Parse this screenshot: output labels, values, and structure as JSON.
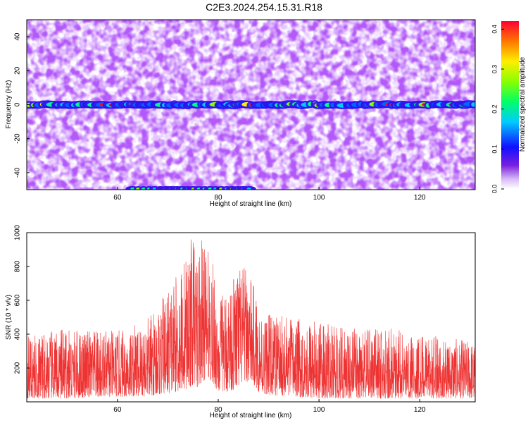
{
  "title": "C2E3.2024.254.15.31.R18",
  "chart_data": [
    {
      "type": "heatmap",
      "xlabel": "Height of straight line (km)",
      "ylabel": "Frequency (Hz)",
      "xlim": [
        42,
        131
      ],
      "ylim": [
        -50,
        50
      ],
      "xticks": [
        60,
        80,
        100,
        120
      ],
      "yticks": [
        40,
        20,
        0,
        -20,
        -40
      ],
      "colorbar": {
        "label": "Normalized spectral amplitude",
        "range": [
          0.0,
          0.42
        ],
        "ticks": [
          "0.0",
          "0.1",
          "0.2",
          "0.3",
          "0.4"
        ]
      },
      "features": [
        {
          "description_value": "strong spectral band",
          "frequency_hz": 0,
          "x_range_km": [
            42,
            131
          ]
        },
        {
          "description_value": "secondary band at lower edge",
          "frequency_hz": -50,
          "x_range_km": [
            63,
            87
          ]
        }
      ]
    },
    {
      "type": "line",
      "xlabel": "Height of straight line (km)",
      "ylabel": "SNR (10 * v/v)",
      "xlim": [
        42,
        131
      ],
      "ylim": [
        0,
        1000
      ],
      "xticks": [
        60,
        80,
        100,
        120
      ],
      "yticks": [
        200,
        400,
        600,
        800,
        1000
      ],
      "series_color": "#ee3333",
      "envelope_km": [
        42,
        50,
        60,
        65,
        68,
        70,
        72,
        74,
        75,
        76,
        77,
        78,
        79,
        80,
        82,
        84,
        85,
        86,
        87,
        88,
        90,
        95,
        100,
        105,
        110,
        115,
        120,
        125,
        131
      ],
      "envelope_min": [
        20,
        20,
        30,
        30,
        40,
        50,
        60,
        80,
        100,
        80,
        120,
        150,
        100,
        60,
        60,
        80,
        120,
        120,
        100,
        60,
        40,
        30,
        20,
        20,
        20,
        20,
        20,
        20,
        20
      ],
      "envelope_max": [
        400,
        430,
        420,
        480,
        560,
        680,
        760,
        920,
        1000,
        950,
        960,
        900,
        820,
        600,
        700,
        820,
        800,
        780,
        700,
        560,
        520,
        500,
        470,
        440,
        430,
        440,
        400,
        380,
        360
      ]
    }
  ]
}
